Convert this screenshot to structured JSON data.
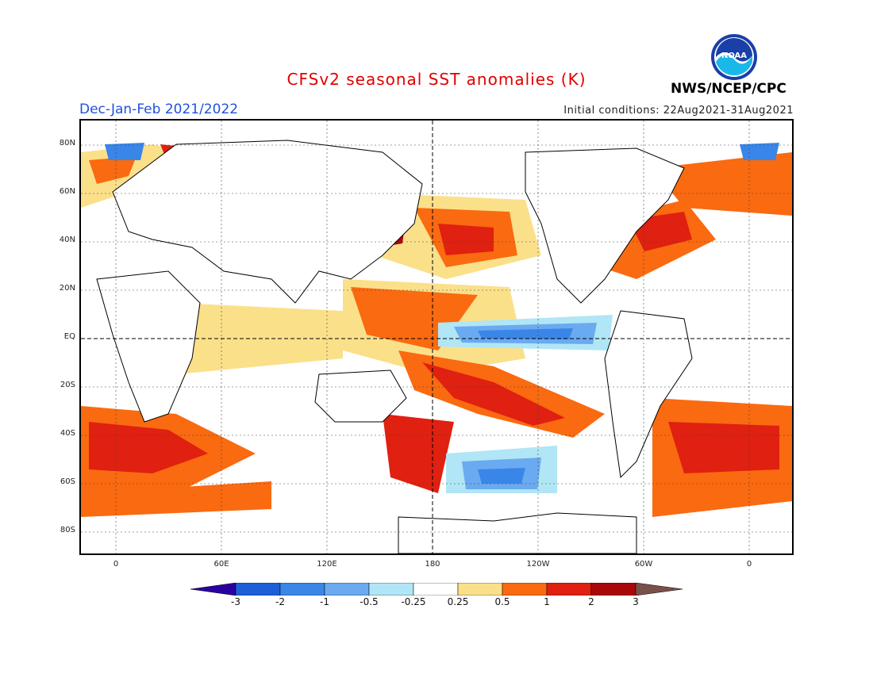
{
  "header": {
    "title": "CFSv2 seasonal SST anomalies (K)",
    "season": "Dec-Jan-Feb 2021/2022",
    "initial_conditions": "Initial conditions: 22Aug2021-31Aug2021",
    "agency": "NWS/NCEP/CPC",
    "logo_text": "NOAA"
  },
  "axes": {
    "lat_labels": [
      "80N",
      "60N",
      "40N",
      "20N",
      "EQ",
      "20S",
      "40S",
      "60S",
      "80S"
    ],
    "lon_labels": [
      "0",
      "60E",
      "120E",
      "180",
      "120W",
      "60W",
      "0"
    ]
  },
  "colorbar": {
    "labels": [
      "-3",
      "-2",
      "-1",
      "-0.5",
      "-0.25",
      "0.25",
      "0.5",
      "1",
      "2",
      "3"
    ],
    "colors": [
      "#2a00a0",
      "#1e5fd8",
      "#3a86e8",
      "#6aaaf0",
      "#b0e6f5",
      "#ffffff",
      "#fbe08a",
      "#fa6a10",
      "#e02010",
      "#a80808",
      "#7a5048"
    ]
  },
  "colors": {
    "warm_1": "#fbe08a",
    "warm_2": "#fa6a10",
    "warm_3": "#e02010",
    "warm_4": "#a80808",
    "cool_1": "#b0e6f5",
    "cool_2": "#6aaaf0",
    "cool_3": "#3a86e8",
    "title": "#e00000",
    "season": "#2050e0"
  }
}
